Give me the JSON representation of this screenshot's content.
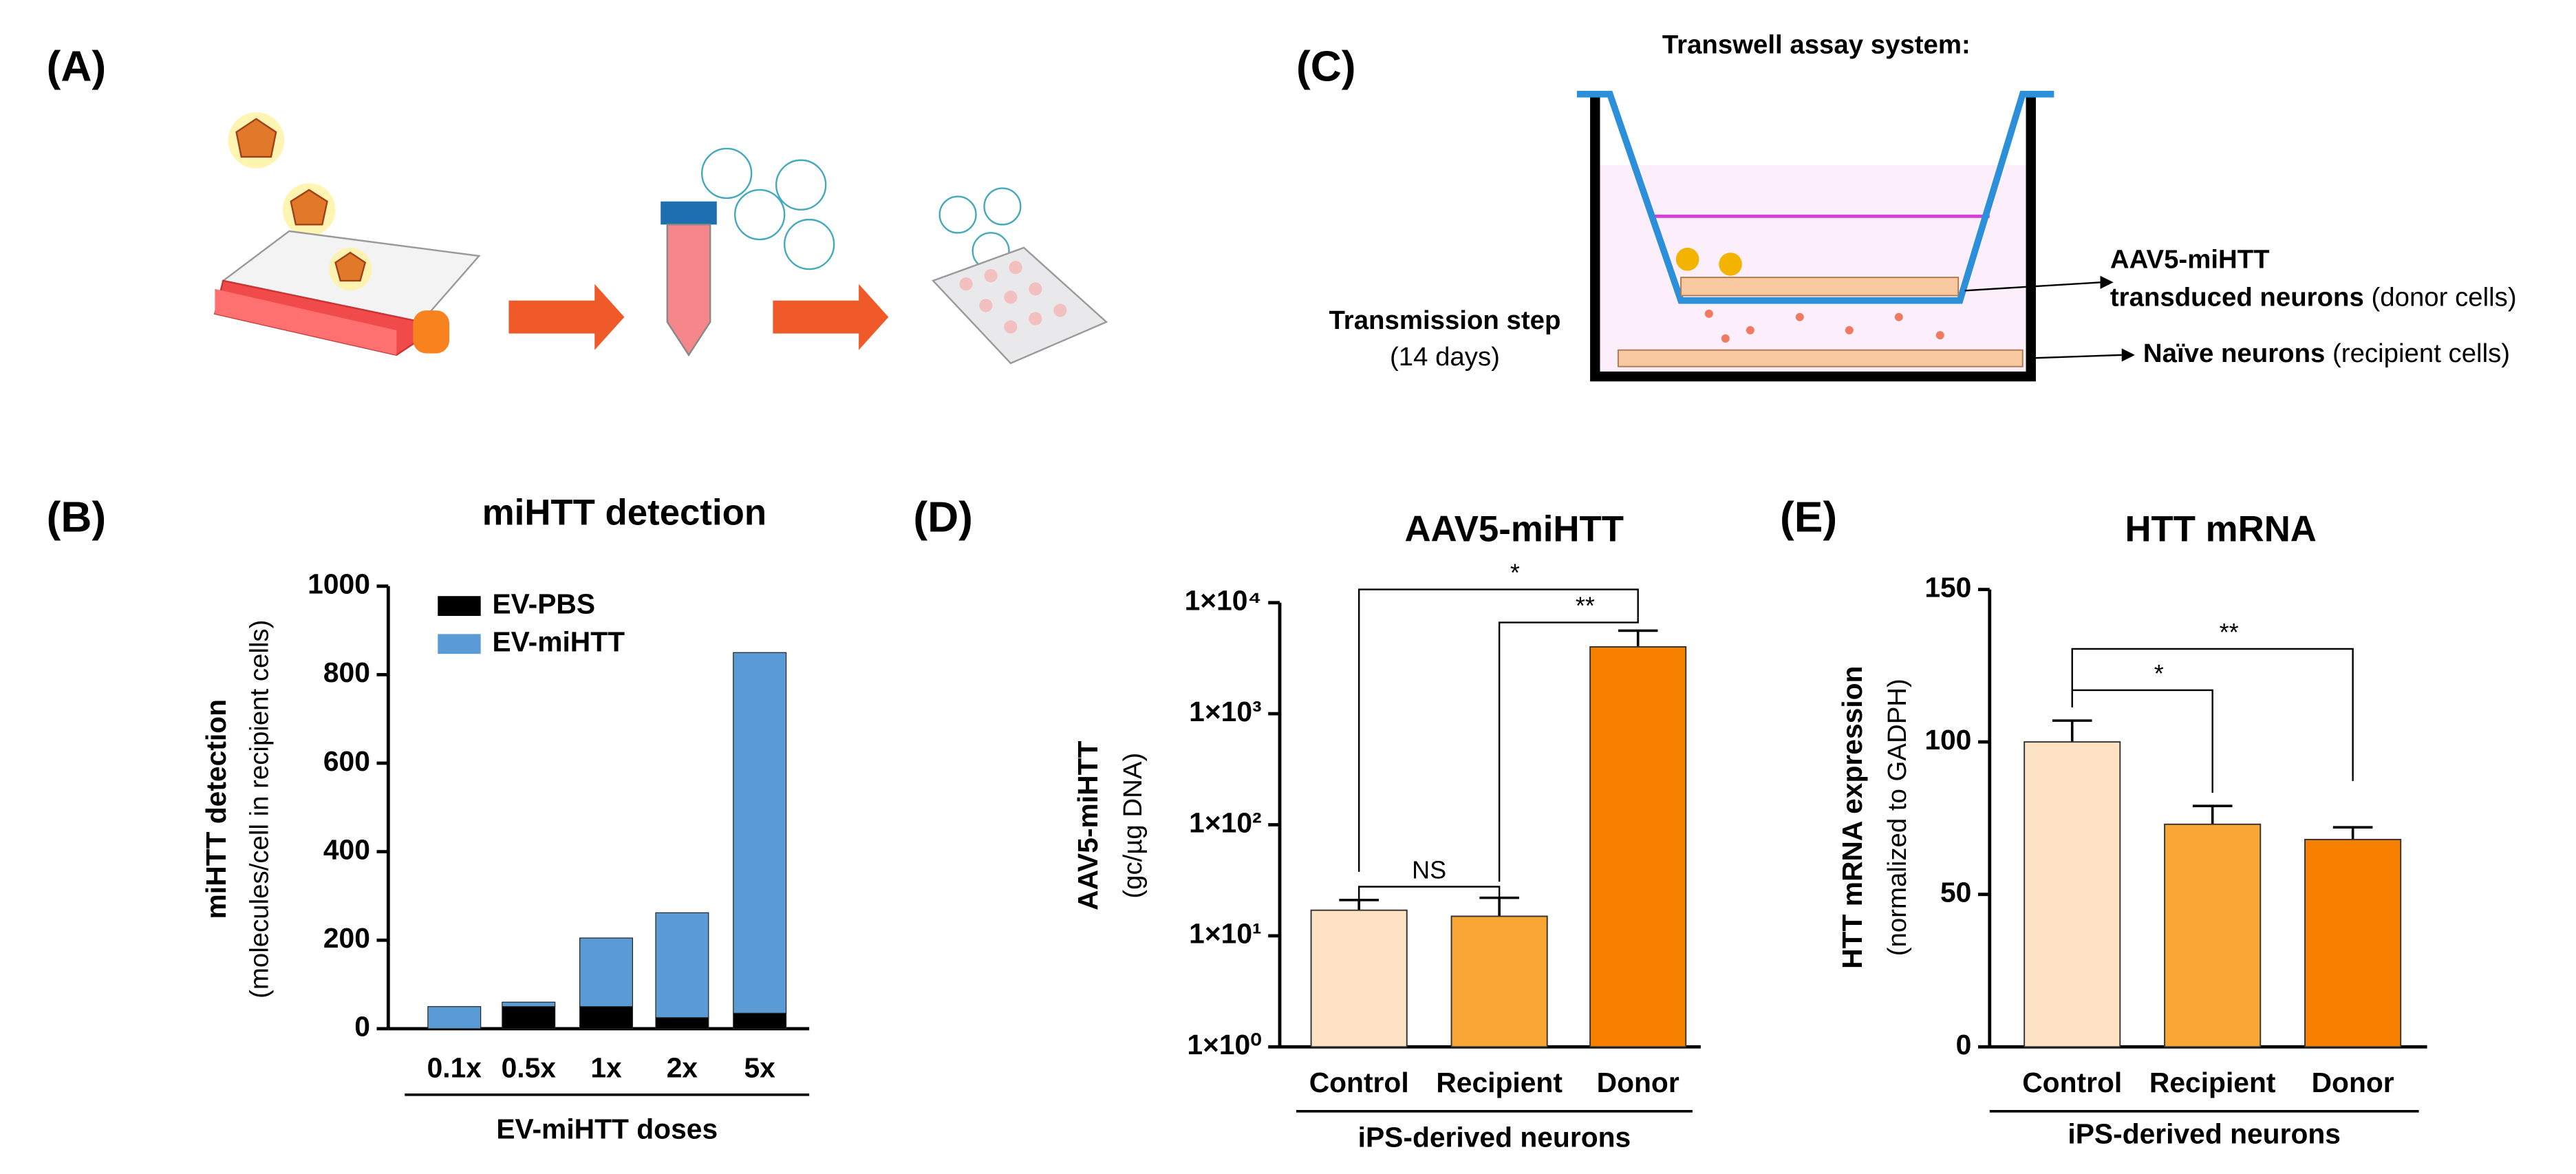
{
  "panels": [
    "(A)",
    "(B)",
    "(C)",
    "(D)",
    "(E)"
  ],
  "diagram": {
    "title": "Transwell assay system:",
    "donor_line1": "AAV5-miHTT",
    "donor_line2_bold": "transduced neurons",
    "donor_line2": "(donor cells)",
    "recipient_bold": "Naïve neurons",
    "recipient": "(recipient cells)",
    "step": "Transmission step",
    "step_time": "(14 days)"
  },
  "chart_data": [
    {
      "type": "stacked_bar",
      "title": "miHTT detection",
      "ylabel": "miHTT detection",
      "ylabel_sub": "(molecules/cell in recipient cells)",
      "xlabel": "EV-miHTT doses",
      "categories": [
        "0.1x",
        "0.5x",
        "1x",
        "2x",
        "5x"
      ],
      "series": [
        {
          "name": "EV-PBS",
          "color": "#000000",
          "values": [
            0,
            50,
            50,
            25,
            35
          ]
        },
        {
          "name": "EV-miHTT",
          "color": "#5b9bd5",
          "values": [
            50,
            10,
            155,
            237,
            815
          ]
        }
      ],
      "ylim": [
        0,
        1000
      ],
      "yticks": [
        0,
        200,
        400,
        600,
        800,
        1000
      ],
      "legend": "upper left"
    },
    {
      "type": "bar",
      "title": "AAV5-miHTT",
      "ylabel": "AAV5-miHTT",
      "ylabel_sub": "(gc/µg DNA)",
      "xlabel": "iPS-derived neurons",
      "categories": [
        "Control",
        "Recipient",
        "Donor"
      ],
      "values": [
        17,
        15,
        4000
      ],
      "errors": [
        4,
        7,
        1600
      ],
      "colors": [
        "#fde3c4",
        "#f9a634",
        "#f77f00"
      ],
      "log": true,
      "ylim": [
        1,
        10000
      ],
      "yticks": [
        {
          "value": 1,
          "label": "1×10⁰"
        },
        {
          "value": 10,
          "label": "1×10¹"
        },
        {
          "value": 100,
          "label": "1×10²"
        },
        {
          "value": 1000,
          "label": "1×10³"
        },
        {
          "value": 10000,
          "label": "1×10⁴"
        }
      ],
      "annotations": [
        "*",
        "**",
        "NS"
      ]
    },
    {
      "type": "bar",
      "title": "HTT mRNA",
      "ylabel": "HTT mRNA expression",
      "ylabel_sub": "(normalized to GADPH)",
      "xlabel": "iPS-derived neurons",
      "categories": [
        "Control",
        "Recipient",
        "Donor"
      ],
      "values": [
        100,
        73,
        68
      ],
      "errors": [
        7,
        6,
        4
      ],
      "colors": [
        "#fde3c4",
        "#f9a634",
        "#f77f00"
      ],
      "ylim": [
        0,
        150
      ],
      "yticks": [
        0,
        50,
        100,
        150
      ],
      "annotations": [
        "*",
        "**"
      ]
    }
  ]
}
